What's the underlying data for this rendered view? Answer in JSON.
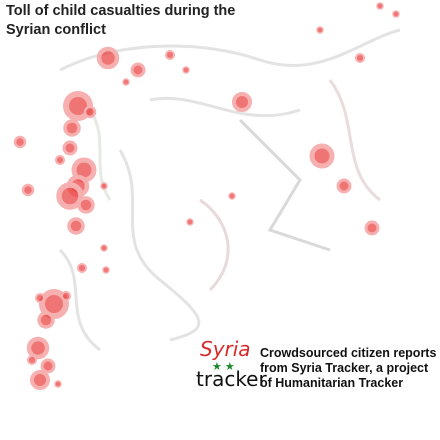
{
  "header": {
    "title_lines": [
      "Toll of child casualties during the",
      "Syrian conflict"
    ]
  },
  "logo": {
    "top": "Syria",
    "bottom": "tracker"
  },
  "caption": {
    "lines": [
      "Crowdsourced citizen reports",
      "from Syria Tracker, a project",
      "of Humanitarian Tracker"
    ]
  }
}
